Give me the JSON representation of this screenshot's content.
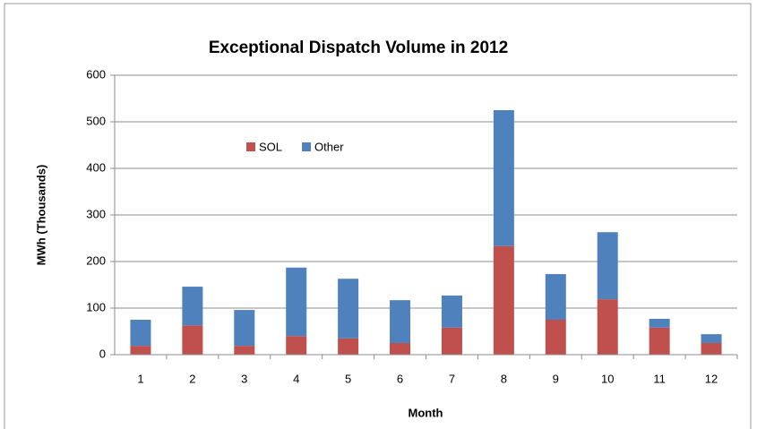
{
  "chart_data": {
    "type": "stacked_bar",
    "title": "Exceptional Dispatch Volume in 2012",
    "x_label": "Month",
    "y_label": "MWh (Thousands)",
    "categories": [
      "1",
      "2",
      "3",
      "4",
      "5",
      "6",
      "7",
      "8",
      "9",
      "10",
      "11",
      "12"
    ],
    "series": [
      {
        "name": "SOL",
        "color": "#c0504d",
        "values": [
          19,
          63,
          19,
          40,
          35,
          25,
          58,
          233,
          75,
          119,
          58,
          25
        ]
      },
      {
        "name": "Other",
        "color": "#4f81bd",
        "values": [
          56,
          83,
          77,
          147,
          128,
          92,
          69,
          292,
          98,
          144,
          19,
          19
        ]
      }
    ],
    "ylim": [
      0,
      600
    ],
    "yticks": [
      0,
      100,
      200,
      300,
      400,
      500,
      600
    ],
    "grid": true,
    "legend": "upper left"
  }
}
